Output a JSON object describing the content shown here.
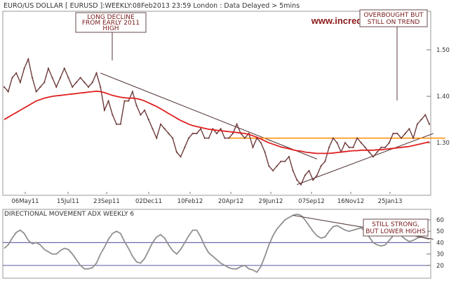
{
  "header": {
    "title": "EURO/US DOLLAR [ EURUSD ]:WEEKLY:08Feb2013 23:59 London : Data Delayed > 5mins",
    "watermark": "www.incrediblecharts.com"
  },
  "colors": {
    "price": "#6e3b3b",
    "ma": "#e02020",
    "support": "#ff8c00",
    "trend": "#5a3a3a",
    "adx": "#909090",
    "adx_ref": "#6a6ab0",
    "annotation": "#7a1a1a",
    "grid": "#bbbbbb"
  },
  "chart_data": [
    {
      "type": "line",
      "title": "EURO/US DOLLAR [ EURUSD ]:WEEKLY:08Feb2013 23:59 London : Data Delayed > 5mins",
      "ylim": [
        1.19,
        1.58
      ],
      "grid": true,
      "x_ticks": [
        "06May11",
        "15Jul11",
        "23Sep11",
        "02Dec11",
        "10Feb12",
        "20Apr12",
        "29Jun12",
        "07Sep12",
        "16Nov12",
        "25Jan13"
      ],
      "y_ticks": [
        "1.50",
        "1.40",
        "1.30"
      ],
      "series": [
        {
          "role": "price",
          "values": [
            1.42,
            1.41,
            1.44,
            1.45,
            1.43,
            1.46,
            1.48,
            1.44,
            1.41,
            1.42,
            1.43,
            1.46,
            1.44,
            1.42,
            1.44,
            1.46,
            1.44,
            1.42,
            1.43,
            1.44,
            1.43,
            1.42,
            1.43,
            1.45,
            1.42,
            1.37,
            1.39,
            1.36,
            1.34,
            1.34,
            1.39,
            1.39,
            1.41,
            1.38,
            1.36,
            1.37,
            1.35,
            1.33,
            1.31,
            1.34,
            1.33,
            1.32,
            1.31,
            1.28,
            1.27,
            1.29,
            1.31,
            1.32,
            1.32,
            1.33,
            1.31,
            1.31,
            1.33,
            1.32,
            1.33,
            1.31,
            1.31,
            1.32,
            1.34,
            1.32,
            1.31,
            1.32,
            1.29,
            1.31,
            1.3,
            1.28,
            1.25,
            1.24,
            1.25,
            1.26,
            1.26,
            1.27,
            1.24,
            1.22,
            1.21,
            1.23,
            1.24,
            1.22,
            1.23,
            1.25,
            1.26,
            1.29,
            1.31,
            1.3,
            1.28,
            1.3,
            1.29,
            1.29,
            1.31,
            1.3,
            1.29,
            1.28,
            1.27,
            1.28,
            1.29,
            1.29,
            1.3,
            1.32,
            1.32,
            1.31,
            1.32,
            1.33,
            1.31,
            1.34,
            1.35,
            1.36,
            1.34
          ]
        },
        {
          "role": "moving-average",
          "values": [
            1.35,
            1.355,
            1.36,
            1.365,
            1.37,
            1.375,
            1.38,
            1.385,
            1.39,
            1.393,
            1.396,
            1.398,
            1.4,
            1.401,
            1.402,
            1.403,
            1.404,
            1.405,
            1.406,
            1.407,
            1.408,
            1.409,
            1.41,
            1.411,
            1.41,
            1.408,
            1.405,
            1.402,
            1.4,
            1.398,
            1.397,
            1.396,
            1.396,
            1.395,
            1.393,
            1.39,
            1.386,
            1.382,
            1.378,
            1.373,
            1.368,
            1.363,
            1.358,
            1.353,
            1.348,
            1.344,
            1.34,
            1.337,
            1.335,
            1.333,
            1.331,
            1.329,
            1.328,
            1.327,
            1.326,
            1.325,
            1.324,
            1.323,
            1.322,
            1.321,
            1.32,
            1.318,
            1.315,
            1.312,
            1.308,
            1.304,
            1.3,
            1.297,
            1.294,
            1.291,
            1.289,
            1.287,
            1.285,
            1.283,
            1.282,
            1.28,
            1.279,
            1.278,
            1.277,
            1.277,
            1.277,
            1.277,
            1.278,
            1.279,
            1.28,
            1.281,
            1.282,
            1.283,
            1.283,
            1.284,
            1.284,
            1.284,
            1.284,
            1.285,
            1.285,
            1.286,
            1.287,
            1.288,
            1.289,
            1.29,
            1.291,
            1.292,
            1.294,
            1.296,
            1.298,
            1.3,
            1.302
          ]
        }
      ],
      "overlays": [
        {
          "role": "trendline",
          "from": [
            24,
            1.45
          ],
          "to": [
            78,
            1.265
          ]
        },
        {
          "role": "trendline",
          "from": [
            73,
            1.21
          ],
          "to": [
            107,
            1.32
          ]
        },
        {
          "role": "support",
          "from": [
            56,
            1.31
          ],
          "to": [
            110,
            1.31
          ]
        }
      ],
      "annotations": [
        {
          "lines": [
            "LONG DECLINE",
            "FROM EARLY 2011",
            "HIGH"
          ],
          "target": [
            24,
            1.45
          ]
        },
        {
          "lines": [
            "OVERBOUGHT BUT",
            "STILL ON TREND"
          ],
          "target": [
            104,
            1.36
          ]
        }
      ]
    },
    {
      "type": "line",
      "title": "DIRECTIONAL MOVEMENT ADX WEEKLY 6",
      "ylim": [
        10,
        68
      ],
      "y_ticks": [
        "60",
        "50",
        "40",
        "30",
        "20"
      ],
      "reference_lines": [
        40,
        20
      ],
      "series": [
        {
          "role": "adx",
          "values": [
            35,
            38,
            44,
            49,
            51,
            48,
            42,
            39,
            40,
            38,
            34,
            32,
            30,
            30,
            33,
            35,
            34,
            30,
            25,
            20,
            17,
            17,
            18,
            22,
            30,
            36,
            43,
            48,
            50,
            48,
            41,
            35,
            28,
            23,
            22,
            26,
            33,
            40,
            45,
            47,
            44,
            38,
            33,
            30,
            34,
            40,
            46,
            51,
            51,
            45,
            37,
            31,
            28,
            25,
            22,
            20,
            18,
            17,
            17,
            19,
            20,
            17,
            16,
            14,
            19,
            28,
            38,
            46,
            52,
            56,
            60,
            62,
            64,
            65,
            64,
            60,
            55,
            50,
            46,
            44,
            45,
            50,
            54,
            55,
            53,
            51,
            50,
            51,
            52,
            53,
            50,
            45,
            40,
            38,
            37,
            38,
            42,
            46,
            48,
            46,
            43,
            41,
            42,
            44,
            45,
            44,
            43
          ]
        }
      ],
      "overlays": [
        {
          "role": "trendline",
          "from": [
            72,
            64
          ],
          "to": [
            107,
            43
          ]
        }
      ],
      "annotations": [
        {
          "lines": [
            "STILL STRONG,",
            "BUT LOWER HIGHS"
          ]
        }
      ]
    }
  ]
}
